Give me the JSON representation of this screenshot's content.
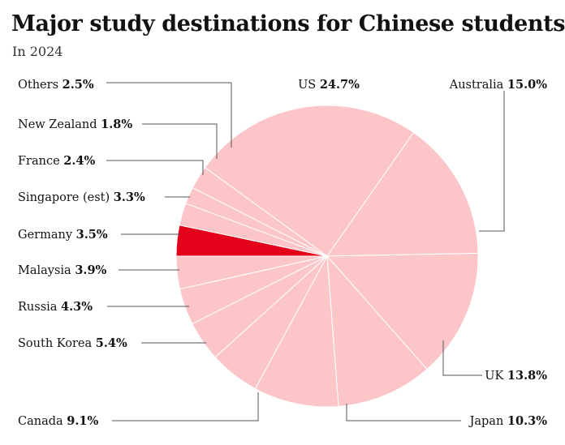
{
  "chart_data": {
    "type": "pie",
    "title": "Major study destinations for Chinese students",
    "subtitle": "In 2024",
    "highlight_color": "#e4001b",
    "base_color": "#fcc5c8",
    "slices": [
      {
        "label": "US",
        "value": 24.7,
        "value_text": "24.7%"
      },
      {
        "label": "Australia",
        "value": 15.0,
        "value_text": "15.0%"
      },
      {
        "label": "UK",
        "value": 13.8,
        "value_text": "13.8%"
      },
      {
        "label": "Japan",
        "value": 10.3,
        "value_text": "10.3%"
      },
      {
        "label": "Canada",
        "value": 9.1,
        "value_text": "9.1%"
      },
      {
        "label": "South Korea",
        "value": 5.4,
        "value_text": "5.4%"
      },
      {
        "label": "Russia",
        "value": 4.3,
        "value_text": "4.3%"
      },
      {
        "label": "Malaysia",
        "value": 3.9,
        "value_text": "3.9%"
      },
      {
        "label": "Germany",
        "value": 3.5,
        "value_text": "3.5%"
      },
      {
        "label": "Singapore (est)",
        "value": 3.3,
        "value_text": "3.3%",
        "highlight": true
      },
      {
        "label": "France",
        "value": 2.4,
        "value_text": "2.4%"
      },
      {
        "label": "New Zealand",
        "value": 1.8,
        "value_text": "1.8%"
      },
      {
        "label": "Others",
        "value": 2.5,
        "value_text": "2.5%"
      }
    ]
  }
}
